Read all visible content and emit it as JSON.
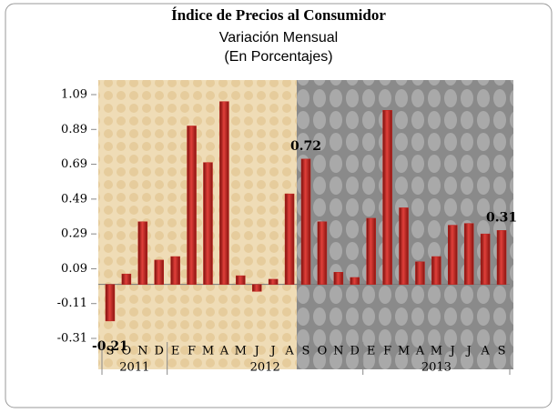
{
  "chart_data": {
    "type": "bar",
    "title": "Índice de Precios al Consumidor",
    "subtitle": [
      "Variación Mensual",
      "(En Porcentajes)"
    ],
    "groups": [
      {
        "name": "2011",
        "categories": [
          "S",
          "O",
          "N",
          "D"
        ]
      },
      {
        "name": "2012",
        "categories": [
          "E",
          "F",
          "M",
          "A",
          "M",
          "J",
          "J",
          "A",
          "S",
          "O",
          "N",
          "D"
        ]
      },
      {
        "name": "2013",
        "categories": [
          "E",
          "F",
          "M",
          "A",
          "M",
          "J",
          "J",
          "A",
          "S"
        ]
      }
    ],
    "values": [
      -0.21,
      0.06,
      0.36,
      0.14,
      0.16,
      0.91,
      0.7,
      1.05,
      0.05,
      -0.04,
      0.03,
      0.52,
      0.72,
      0.36,
      0.07,
      0.04,
      0.38,
      1.0,
      0.44,
      0.13,
      0.16,
      0.34,
      0.35,
      0.29,
      0.31
    ],
    "value_labels": [
      "-0.21",
      null,
      null,
      null,
      null,
      null,
      null,
      null,
      null,
      null,
      null,
      null,
      "0.72",
      null,
      null,
      null,
      null,
      null,
      null,
      null,
      null,
      null,
      null,
      null,
      "0.31"
    ],
    "color": "#c0201c",
    "ylim": [
      -0.31,
      1.09
    ],
    "yticks": [
      -0.31,
      -0.11,
      0.09,
      0.29,
      0.49,
      0.69,
      0.89,
      1.09
    ]
  }
}
